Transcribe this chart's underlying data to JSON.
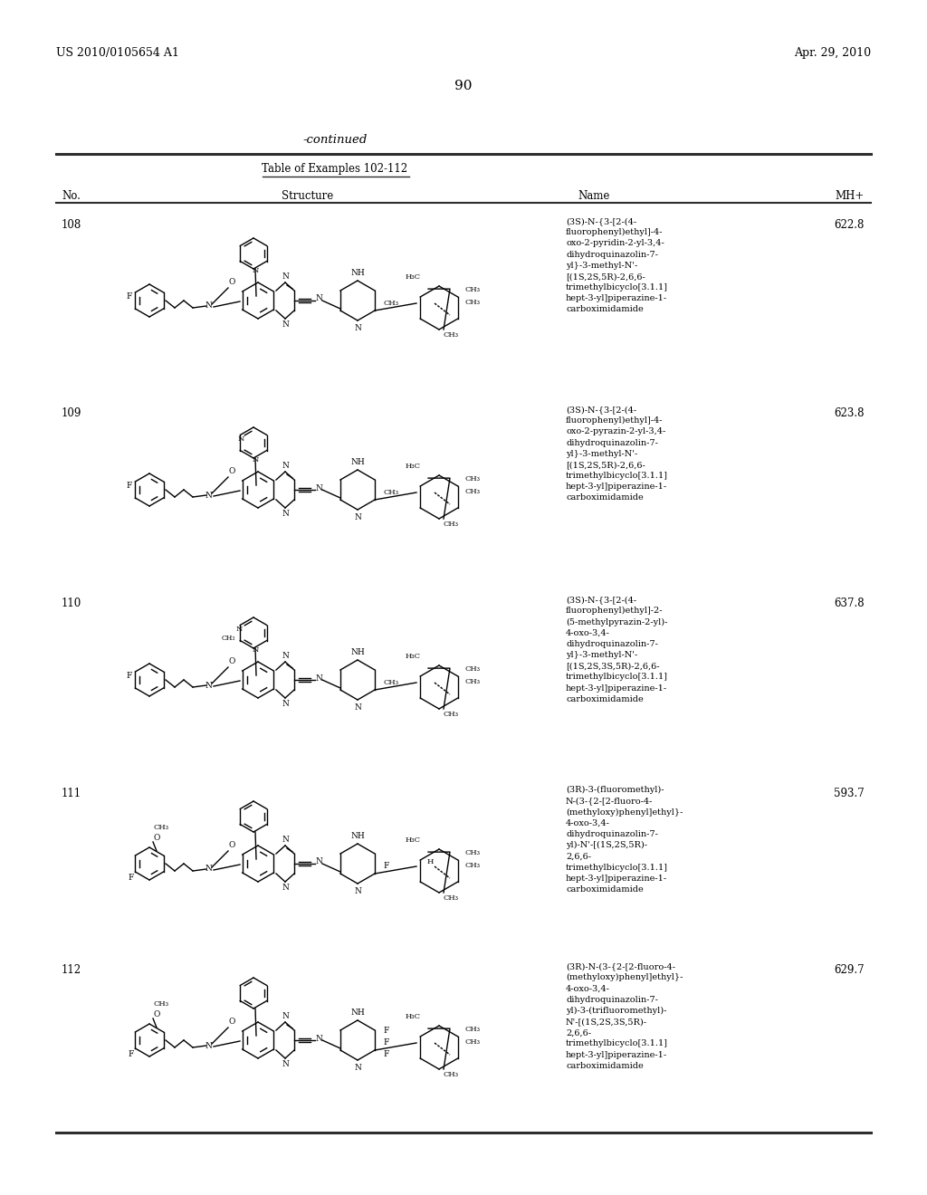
{
  "page_header_left": "US 2010/0105654 A1",
  "page_header_right": "Apr. 29, 2010",
  "page_number": "90",
  "continued_text": "-continued",
  "table_title": "Table of Examples 102-112",
  "col_headers": [
    "No.",
    "Structure",
    "Name",
    "MH+"
  ],
  "background_color": "#ffffff",
  "text_color": "#000000",
  "entries": [
    {
      "no": "108",
      "mh": "622.8",
      "name": "(3S)-N-{3-[2-(4-\nfluorophenyl)ethyl]-4-\noxo-2-pyridin-2-yl-3,4-\ndihydroquinazolin-7-\nyl}-3-methyl-N'-\n[(1S,2S,5R)-2,6,6-\ntrimethylbicyclo[3.1.1]\nhept-3-yl]piperazine-1-\ncarboximidamide"
    },
    {
      "no": "109",
      "mh": "623.8",
      "name": "(3S)-N-{3-[2-(4-\nfluorophenyl)ethyl]-4-\noxo-2-pyrazin-2-yl-3,4-\ndihydroquinazolin-7-\nyl}-3-methyl-N'-\n[(1S,2S,5R)-2,6,6-\ntrimethylbicyclo[3.1.1]\nhept-3-yl]piperazine-1-\ncarboximidamide"
    },
    {
      "no": "110",
      "mh": "637.8",
      "name": "(3S)-N-{3-[2-(4-\nfluorophenyl)ethyl]-2-\n(5-methylpyrazin-2-yl)-\n4-oxo-3,4-\ndihydroquinazolin-7-\nyl}-3-methyl-N'-\n[(1S,2S,3S,5R)-2,6,6-\ntrimethylbicyclo[3.1.1]\nhept-3-yl]piperazine-1-\ncarboximidamide"
    },
    {
      "no": "111",
      "mh": "593.7",
      "name": "(3R)-3-(fluoromethyl)-\nN-(3-{2-[2-fluoro-4-\n(methyloxy)phenyl]ethyl}-\n4-oxo-3,4-\ndihydroquinazolin-7-\nyl)-N'-[(1S,2S,5R)-\n2,6,6-\ntrimethylbicyclo[3.1.1]\nhept-3-yl]piperazine-1-\ncarboximidamide"
    },
    {
      "no": "112",
      "mh": "629.7",
      "name": "(3R)-N-(3-{2-[2-fluoro-4-\n(methyloxy)phenyl]ethyl}-\n4-oxo-3,4-\ndihydroquinazolin-7-\nyl)-3-(trifluoromethyl)-\nN'-[(1S,2S,3S,5R)-\n2,6,6-\ntrimethylbicyclo[3.1.1]\nhept-3-yl]piperazine-1-\ncarboximidamide"
    }
  ]
}
